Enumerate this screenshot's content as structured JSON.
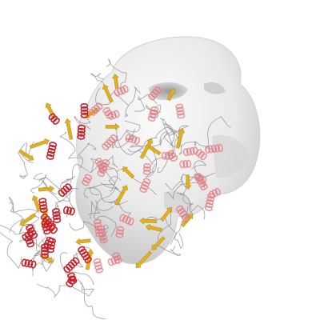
{
  "figure": {
    "subject": "protein-structure-fitted-into-density-map",
    "colors": {
      "background": "#ffffff",
      "density_surface": "#e8e8e8",
      "density_shadow": "#b9b9b9",
      "helix": "#c8202a",
      "helix_light": "#e27a80",
      "strand": "#e0b020",
      "coil": "#8a8a8a"
    }
  }
}
